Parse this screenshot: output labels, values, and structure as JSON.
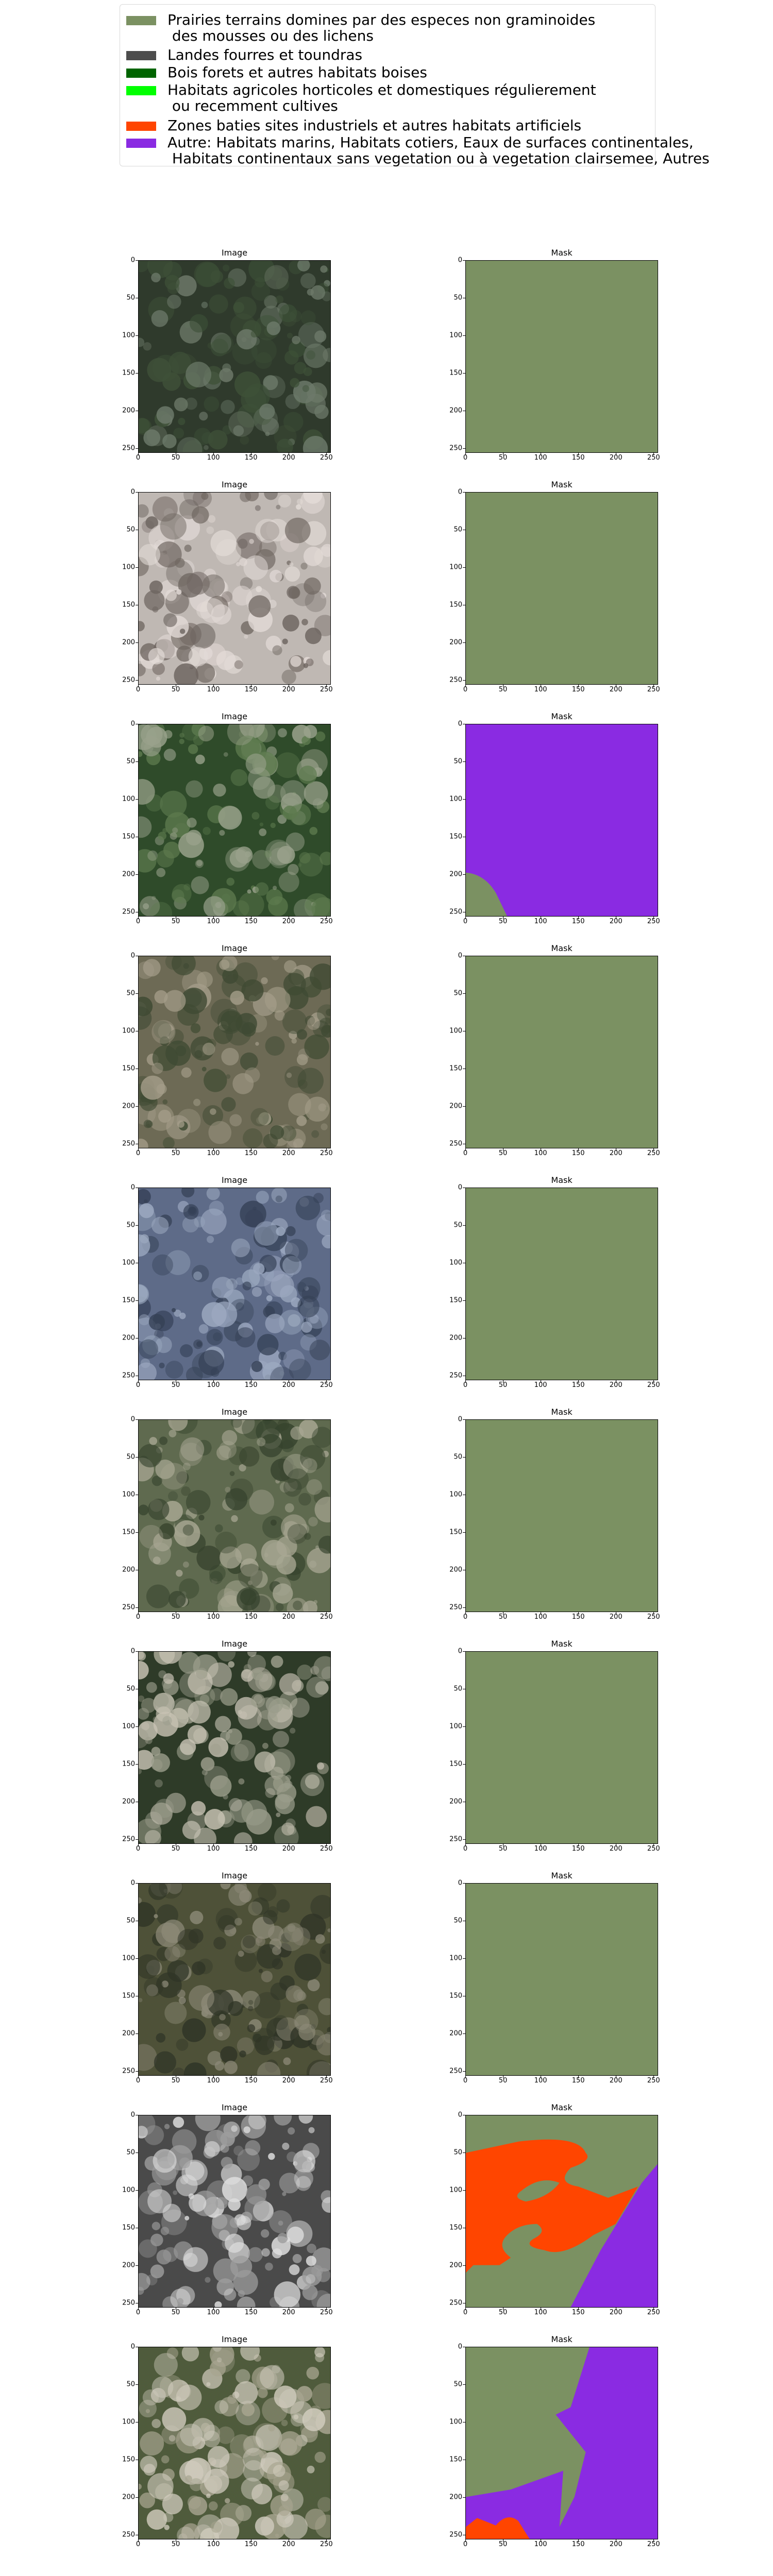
{
  "legend": [
    {
      "label": "Prairies terrains domines par des especes non graminoides\n des mousses ou des lichens",
      "color": "#7b9162"
    },
    {
      "label": "Landes fourres et toundras",
      "color": "#4d4d4d"
    },
    {
      "label": "Bois forets et autres habitats boises",
      "color": "#006400"
    },
    {
      "label": "Habitats agricoles horticoles et domestiques régulierement\n ou recemment cultives",
      "color": "#00ff00"
    },
    {
      "label": "Zones baties sites industriels et autres habitats artificiels",
      "color": "#ff4500"
    },
    {
      "label": "Autre: Habitats marins, Habitats cotiers, Eaux de surfaces continentales,\n Habitats continentaux sans vegetation ou à vegetation clairsemee, Autres",
      "color": "#8a2be2"
    }
  ],
  "panel_titles": {
    "image": "Image",
    "mask": "Mask"
  },
  "axis_ticks": {
    "x": [
      "0",
      "50",
      "100",
      "150",
      "200",
      "250"
    ],
    "y": [
      "0",
      "50",
      "100",
      "150",
      "200",
      "250"
    ]
  },
  "rows": [
    {
      "image_tone": [
        "#2f3a2c",
        "#6d7a6a",
        "#3e5138"
      ],
      "mask": "grassland"
    },
    {
      "image_tone": [
        "#bfb8b3",
        "#6e6560",
        "#e4dcd8"
      ],
      "mask": "grassland"
    },
    {
      "image_tone": [
        "#2f4b2a",
        "#5d7a4e",
        "#9aa28c"
      ],
      "mask": "other-with-grass-corner"
    },
    {
      "image_tone": [
        "#6d6a55",
        "#a59e8a",
        "#3f4a33"
      ],
      "mask": "grassland"
    },
    {
      "image_tone": [
        "#5e6b88",
        "#9ca9c0",
        "#344055"
      ],
      "mask": "grassland"
    },
    {
      "image_tone": [
        "#5f6a4f",
        "#a8a793",
        "#36432d"
      ],
      "mask": "grassland"
    },
    {
      "image_tone": [
        "#2e3b28",
        "#9a9c8a",
        "#c7c2b3"
      ],
      "mask": "grassland"
    },
    {
      "image_tone": [
        "#4e5138",
        "#8d8a78",
        "#2f3426"
      ],
      "mask": "grassland"
    },
    {
      "image_tone": [
        "#4a4a4a",
        "#9c9c9c",
        "#dedede"
      ],
      "mask": "mixed-builtup-other"
    },
    {
      "image_tone": [
        "#4f5b3c",
        "#a7a48f",
        "#d0cbbd"
      ],
      "mask": "grass-other-builtup"
    }
  ]
}
